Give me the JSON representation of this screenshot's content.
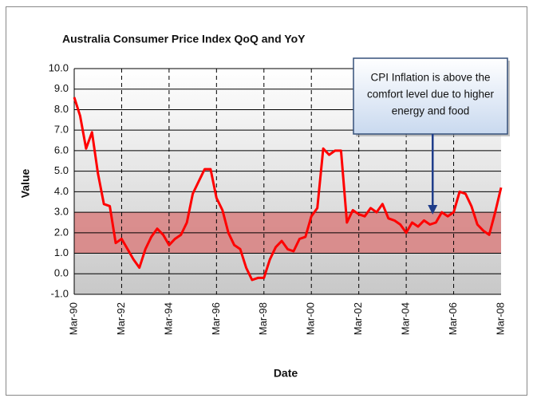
{
  "chart_data": {
    "type": "line",
    "title": "Australia Consumer Price Index QoQ and YoY",
    "x_label": "Date",
    "y_label": "Value",
    "categories": [
      "Mar-90",
      null,
      null,
      null,
      null,
      null,
      null,
      null,
      "Mar-92",
      null,
      null,
      null,
      null,
      null,
      null,
      null,
      "Mar-94",
      null,
      null,
      null,
      null,
      null,
      null,
      null,
      "Mar-96",
      null,
      null,
      null,
      null,
      null,
      null,
      null,
      "Mar-98",
      null,
      null,
      null,
      null,
      null,
      null,
      null,
      "Mar-00",
      null,
      null,
      null,
      null,
      null,
      null,
      null,
      "Mar-02",
      null,
      null,
      null,
      null,
      null,
      null,
      null,
      "Mar-04",
      null,
      null,
      null,
      null,
      null,
      null,
      null,
      "Mar-06",
      null,
      null,
      null,
      null,
      null,
      null,
      null,
      "Mar-08"
    ],
    "values": [
      8.6,
      7.7,
      6.1,
      6.9,
      4.9,
      3.4,
      3.3,
      1.5,
      1.7,
      1.2,
      0.7,
      0.3,
      1.2,
      1.8,
      2.2,
      1.9,
      1.4,
      1.7,
      1.9,
      2.5,
      3.9,
      4.5,
      5.1,
      5.1,
      3.7,
      3.1,
      2.0,
      1.4,
      1.2,
      0.3,
      -0.3,
      -0.2,
      -0.2,
      0.7,
      1.3,
      1.6,
      1.2,
      1.1,
      1.7,
      1.8,
      2.8,
      3.2,
      6.1,
      5.8,
      6.0,
      6.0,
      2.5,
      3.1,
      2.9,
      2.8,
      3.2,
      3.0,
      3.4,
      2.7,
      2.6,
      2.4,
      2.0,
      2.5,
      2.3,
      2.6,
      2.4,
      2.5,
      3.0,
      2.8,
      3.0,
      4.0,
      3.9,
      3.3,
      2.4,
      2.1,
      1.9,
      3.0,
      4.2
    ],
    "color": "#ff0000",
    "ylim": [
      -1,
      10
    ],
    "yticks": [
      {
        "value": -1,
        "label": "-1.0"
      },
      {
        "value": 0,
        "label": "0.0"
      },
      {
        "value": 1,
        "label": "1.0"
      },
      {
        "value": 2,
        "label": "2.0"
      },
      {
        "value": 3,
        "label": "3.0"
      },
      {
        "value": 4,
        "label": "4.0"
      },
      {
        "value": 5,
        "label": "5.0"
      },
      {
        "value": 6,
        "label": "6.0"
      },
      {
        "value": 7,
        "label": "7.0"
      },
      {
        "value": 8,
        "label": "8.0"
      },
      {
        "value": 9,
        "label": "9.0"
      },
      {
        "value": 10,
        "label": "10.0"
      }
    ],
    "grid": true,
    "band": {
      "from": 1,
      "to": 3,
      "color": "#d98080"
    },
    "annotation": {
      "lines": [
        "CPI Inflation is above the",
        "comfort level due to higher",
        "energy and food"
      ],
      "target": 61
    }
  }
}
